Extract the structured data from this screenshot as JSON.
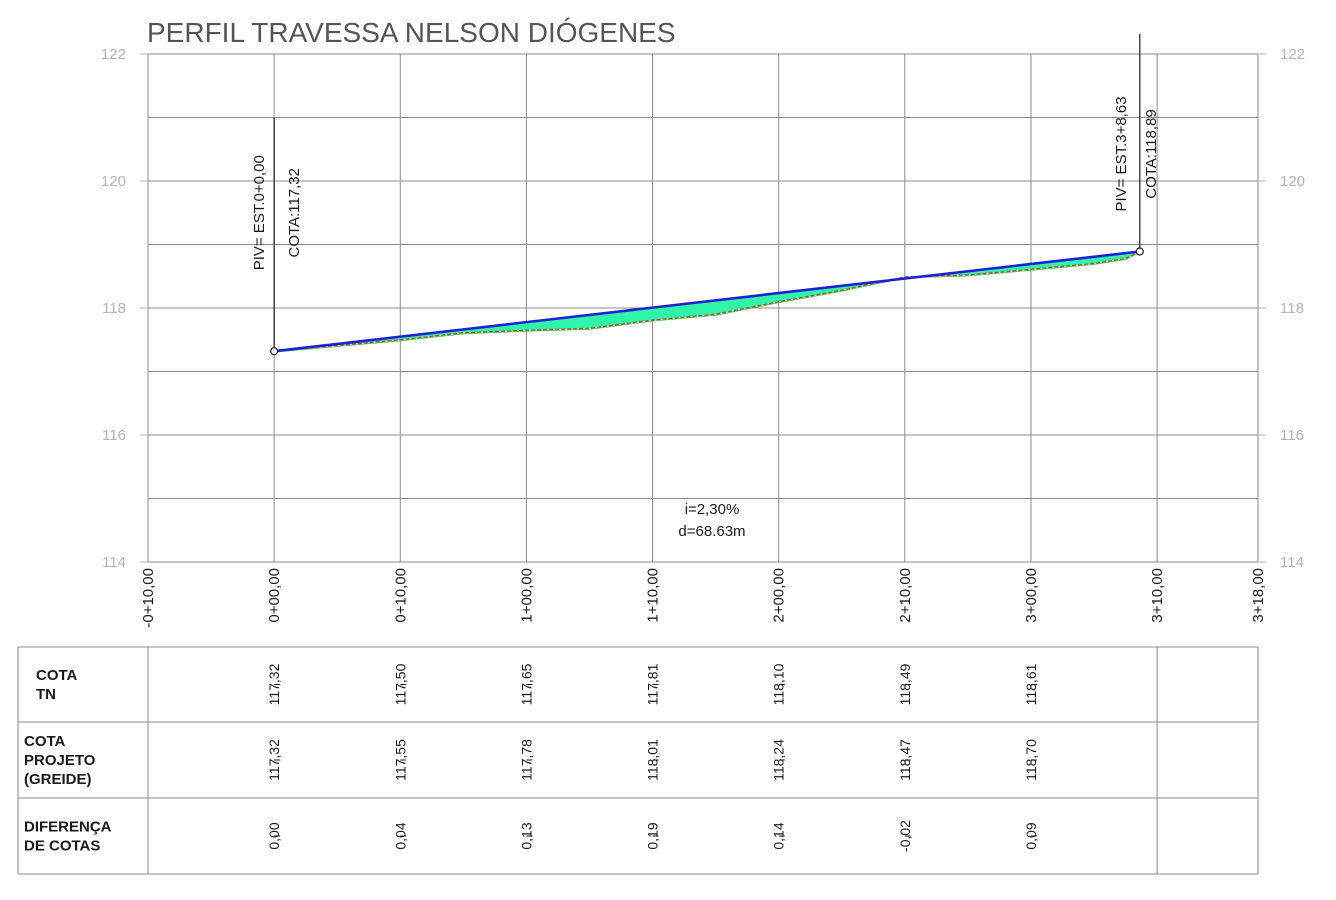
{
  "chart_data": {
    "type": "line",
    "title": "PERFIL TRAVESSA NELSON DIÓGENES",
    "y_ticks": [
      "122",
      "120",
      "118",
      "116",
      "114"
    ],
    "ylim": [
      114,
      122
    ],
    "grid": true,
    "stations": [
      "-0+10,00",
      "0+00,00",
      "0+10,00",
      "1+00,00",
      "1+10,00",
      "2+00,00",
      "2+10,00",
      "3+00,00",
      "3+10,00",
      "3+18,00"
    ],
    "station_distance_m": [
      -10,
      0,
      10,
      20,
      30,
      40,
      50,
      60,
      70,
      78
    ],
    "series": [
      {
        "key": "greide",
        "color": "#1f1fd6",
        "x": [
          0,
          68.63
        ],
        "y": [
          117.32,
          118.89
        ]
      },
      {
        "key": "terreno",
        "color": "#c0392b",
        "x": [
          0,
          5,
          10,
          15,
          20,
          25,
          30,
          35,
          40,
          45,
          50,
          55,
          60,
          65,
          67.5,
          68.63
        ],
        "y": [
          117.32,
          117.41,
          117.5,
          117.61,
          117.65,
          117.68,
          117.81,
          117.9,
          118.1,
          118.28,
          118.49,
          118.52,
          118.61,
          118.7,
          118.78,
          118.89
        ]
      }
    ],
    "piv": [
      {
        "station": "PIV= EST.0+0,00",
        "cota": "COTA:117,32",
        "x": 0,
        "y": 117.32
      },
      {
        "station": "PIV= EST.3+8,63",
        "cota": "COTA:118,89",
        "x": 68.63,
        "y": 118.89
      }
    ],
    "annotations": {
      "slope": "i=2,30%",
      "distance": "d=68.63m"
    },
    "table": {
      "rows": [
        {
          "title_lines": [
            "COTA",
            "TN"
          ],
          "values": [
            "117,32",
            "117,50",
            "117,65",
            "117,81",
            "118,10",
            "118,49",
            "118,61"
          ]
        },
        {
          "title_lines": [
            "COTA",
            "PROJETO",
            "(GREIDE)"
          ],
          "values": [
            "117,32",
            "117,55",
            "117,78",
            "118,01",
            "118,24",
            "118,47",
            "118,70"
          ]
        },
        {
          "title_lines": [
            "DIFERENÇA",
            "DE COTAS"
          ],
          "values": [
            "0,00",
            "0,04",
            "0,13",
            "0,19",
            "0,14",
            "-0,02",
            "0,09"
          ]
        }
      ]
    },
    "colors": {
      "fill": "#2ff5a8",
      "grid": "#8c8c8c",
      "greide": "#1f1fd6",
      "terreno": "#c0392b"
    }
  }
}
